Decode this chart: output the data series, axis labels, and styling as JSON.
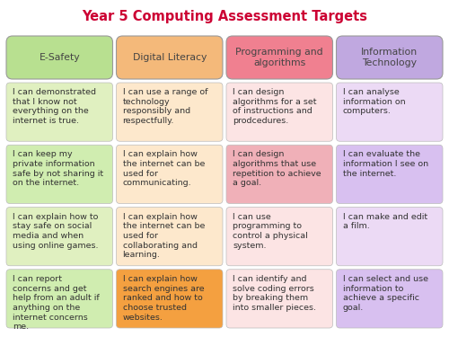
{
  "title": "Year 5 Computing Assessment Targets",
  "title_color": "#cc0033",
  "title_fontsize": 10.5,
  "columns": [
    "E-Safety",
    "Digital Literacy",
    "Programming and\nalgorithms",
    "Information\nTechnology"
  ],
  "header_colors": [
    "#b8e090",
    "#f4b97a",
    "#f08090",
    "#c0a8e0"
  ],
  "header_text_color": "#444444",
  "rows": [
    {
      "cells": [
        {
          "text": "I can demonstrated\nthat I know not\neverything on the\ninternet is true.",
          "bg": "#e0f0c0"
        },
        {
          "text": "I can use a range of\ntechnology\nresponsibly and\nrespectfully.",
          "bg": "#fde8cc"
        },
        {
          "text": "I can design\nalgorithms for a set\nof instructions and\nprodcedures.",
          "bg": "#fce4e4"
        },
        {
          "text": "I can analyse\ninformation on\ncomputers.",
          "bg": "#ecdaf5"
        }
      ]
    },
    {
      "cells": [
        {
          "text": "I can keep my\nprivate information\nsafe by not sharing it\non the internet.",
          "bg": "#d0edb0"
        },
        {
          "text": "I can explain how\nthe internet can be\nused for\ncommunicating.",
          "bg": "#fde8cc"
        },
        {
          "text": "I can design\nalgorithms that use\nrepetition to achieve\na goal.",
          "bg": "#f0b0b8"
        },
        {
          "text": "I can evaluate the\ninformation I see on\nthe internet.",
          "bg": "#d8c0f0"
        }
      ]
    },
    {
      "cells": [
        {
          "text": "I can explain how to\nstay safe on social\nmedia and when\nusing online games.",
          "bg": "#e0f0c0"
        },
        {
          "text": "I can explain how\nthe internet can be\nused for\ncollaborating and\nlearning.",
          "bg": "#fde8cc"
        },
        {
          "text": "I can use\nprogramming to\ncontrol a physical\nsystem.",
          "bg": "#fce4e4"
        },
        {
          "text": "I can make and edit\na film.",
          "bg": "#ecdaf5"
        }
      ]
    },
    {
      "cells": [
        {
          "text": "I can report\nconcerns and get\nhelp from an adult if\nanything on the\ninternet concerns\nme.",
          "bg": "#d0edb0"
        },
        {
          "text": "I can explain how\nsearch engines are\nranked and how to\nchoose trusted\nwebsites.",
          "bg": "#f4a040"
        },
        {
          "text": "I can identify and\nsolve coding errors\nby breaking them\ninto smaller pieces.",
          "bg": "#fce4e4"
        },
        {
          "text": "I can select and use\ninformation to\nachieve a specific\ngoal.",
          "bg": "#d8c0f0"
        }
      ]
    }
  ],
  "bg_color": "#ffffff",
  "cell_text_color": "#333333",
  "cell_text_fontsize": 6.8,
  "header_fontsize": 7.8,
  "grid_color": "#aaaaaa"
}
